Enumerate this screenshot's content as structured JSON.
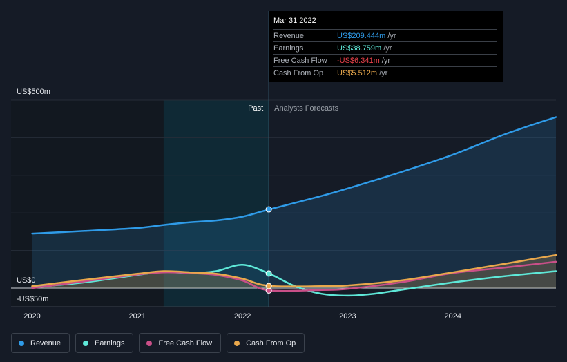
{
  "tooltip": {
    "date": "Mar 31 2022",
    "rows": [
      {
        "label": "Revenue",
        "value": "US$209.444m",
        "unit": "/yr",
        "color": "#2f9be8"
      },
      {
        "label": "Earnings",
        "value": "US$38.759m",
        "unit": "/yr",
        "color": "#5ee8d8"
      },
      {
        "label": "Free Cash Flow",
        "value": "-US$6.341m",
        "unit": "/yr",
        "color": "#e8414a"
      },
      {
        "label": "Cash From Op",
        "value": "US$5.512m",
        "unit": "/yr",
        "color": "#e9a84c"
      }
    ]
  },
  "legend": [
    {
      "label": "Revenue",
      "color": "#2f9be8"
    },
    {
      "label": "Earnings",
      "color": "#5ee8d8"
    },
    {
      "label": "Free Cash Flow",
      "color": "#c94f88"
    },
    {
      "label": "Cash From Op",
      "color": "#e9a84c"
    }
  ],
  "chart_data": {
    "type": "line",
    "y_tick_labels": [
      "US$500m",
      "US$0",
      "-US$50m"
    ],
    "x_tick_labels": [
      "2020",
      "2021",
      "2022",
      "2023",
      "2024"
    ],
    "ylim": [
      -50,
      500
    ],
    "xlim": [
      2019.8,
      2024.98
    ],
    "past_label": "Past",
    "forecast_label": "Analysts Forecasts",
    "divider_x": 2022.25,
    "highlight_start_x": 2021.25,
    "grid": true,
    "series": [
      {
        "name": "Revenue",
        "color": "#2f9be8",
        "area": true,
        "x": [
          2020.0,
          2020.5,
          2021.0,
          2021.25,
          2021.5,
          2021.75,
          2022.0,
          2022.25,
          2022.75,
          2023.0,
          2023.5,
          2024.0,
          2024.5,
          2024.98
        ],
        "y": [
          145,
          152,
          160,
          168,
          175,
          180,
          190,
          209,
          245,
          265,
          308,
          355,
          410,
          455
        ]
      },
      {
        "name": "Earnings",
        "color": "#5ee8d8",
        "area": false,
        "x": [
          2020.0,
          2020.5,
          2021.0,
          2021.25,
          2021.5,
          2021.75,
          2022.0,
          2022.25,
          2022.5,
          2022.75,
          2023.0,
          2023.25,
          2023.5,
          2024.0,
          2024.5,
          2024.98
        ],
        "y": [
          2,
          15,
          35,
          43,
          40,
          45,
          62,
          39,
          5,
          -15,
          -20,
          -15,
          -5,
          15,
          32,
          45
        ]
      },
      {
        "name": "Free Cash Flow",
        "color": "#c94f88",
        "area": false,
        "x": [
          2020.0,
          2020.5,
          2021.0,
          2021.25,
          2021.5,
          2021.75,
          2022.0,
          2022.25,
          2022.75,
          2023.0,
          2023.5,
          2024.0,
          2024.5,
          2024.98
        ],
        "y": [
          0,
          18,
          36,
          42,
          40,
          35,
          20,
          -6,
          -5,
          -2,
          15,
          40,
          55,
          70
        ]
      },
      {
        "name": "Cash From Op",
        "color": "#e9a84c",
        "area": true,
        "x": [
          2020.0,
          2020.5,
          2021.0,
          2021.25,
          2021.5,
          2021.75,
          2022.0,
          2022.25,
          2022.75,
          2023.0,
          2023.5,
          2024.0,
          2024.5,
          2024.98
        ],
        "y": [
          5,
          22,
          38,
          45,
          42,
          38,
          25,
          6,
          5,
          7,
          20,
          42,
          65,
          88
        ]
      }
    ],
    "markers": [
      {
        "series": "Revenue",
        "x": 2022.25,
        "y": 209.444
      },
      {
        "series": "Earnings",
        "x": 2022.25,
        "y": 38.759
      },
      {
        "series": "Free Cash Flow",
        "x": 2022.25,
        "y": -6.341
      },
      {
        "series": "Cash From Op",
        "x": 2022.25,
        "y": 5.512
      }
    ]
  }
}
